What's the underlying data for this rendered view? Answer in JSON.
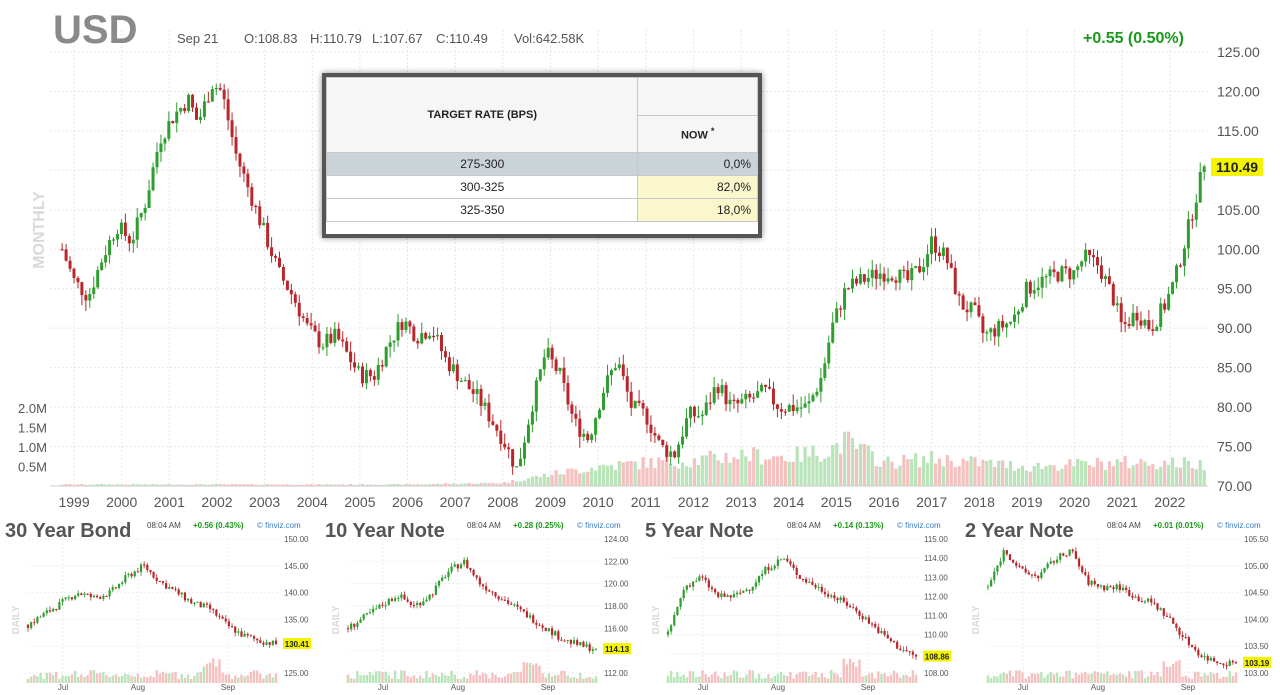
{
  "header": {
    "symbol": "USD",
    "date": "Sep 21",
    "open": "O:108.83",
    "high": "H:110.79",
    "low": "L:107.67",
    "close": "C:110.49",
    "volume": "Vol:642.58K",
    "change": "+0.55 (0.50%)",
    "period": "MONTHLY",
    "last_price": "110.49"
  },
  "colors": {
    "up": "#2e9e2e",
    "down": "#b8272c",
    "change_green": "#1a9a1a",
    "price_tag": "#f4f400",
    "vol_up": "#b9e3b9",
    "vol_down": "#f5c0c0"
  },
  "rate_table": {
    "header": "TARGET RATE (BPS)",
    "col": "NOW",
    "col_mark": "*",
    "rows": [
      {
        "range": "275-300",
        "pct": "0,0%"
      },
      {
        "range": "300-325",
        "pct": "82,0%"
      },
      {
        "range": "325-350",
        "pct": "18,0%"
      }
    ]
  },
  "chart_data": [
    {
      "type": "candlestick",
      "title": "USD",
      "subtitle": "MONTHLY",
      "x_ticks": [
        "1999",
        "2000",
        "2001",
        "2002",
        "2003",
        "2004",
        "2005",
        "2006",
        "2007",
        "2008",
        "2009",
        "2010",
        "2011",
        "2012",
        "2013",
        "2014",
        "2015",
        "2016",
        "2017",
        "2018",
        "2019",
        "2020",
        "2021",
        "2022"
      ],
      "y_ticks": [
        70,
        75,
        80,
        85,
        90,
        95,
        100,
        105,
        110,
        115,
        120,
        125
      ],
      "y_tick_labels": [
        "70.00",
        "75.00",
        "80.00",
        "85.00",
        "90.00",
        "95.00",
        "100.00",
        "105.00",
        "110.00",
        "115.00",
        "120.00",
        "125.00"
      ],
      "ylim": [
        70,
        125
      ],
      "x_range": [
        1998.6,
        2022.8
      ],
      "volume_ticks": [
        "0.5M",
        "1.0M",
        "1.5M",
        "2.0M"
      ],
      "volume_tick_values": [
        0.5,
        1.0,
        1.5,
        2.0
      ],
      "series": [
        {
          "name": "USD",
          "x": [
            1998.75,
            1999.0,
            1999.3,
            1999.6,
            1999.9,
            2000.2,
            2000.5,
            2000.8,
            2001.1,
            2001.4,
            2001.6,
            2001.9,
            2002.1,
            2002.4,
            2002.7,
            2003.0,
            2003.3,
            2003.6,
            2003.9,
            2004.2,
            2004.5,
            2004.8,
            2005.0,
            2005.3,
            2005.6,
            2005.9,
            2006.2,
            2006.5,
            2006.8,
            2007.2,
            2007.5,
            2007.8,
            2008.0,
            2008.3,
            2008.6,
            2008.9,
            2009.2,
            2009.5,
            2009.8,
            2010.1,
            2010.4,
            2010.7,
            2011.0,
            2011.3,
            2011.6,
            2011.9,
            2012.2,
            2012.5,
            2012.8,
            2013.2,
            2013.5,
            2013.8,
            2014.1,
            2014.4,
            2014.7,
            2014.9,
            2015.2,
            2015.5,
            2015.9,
            2016.2,
            2016.5,
            2016.8,
            2017.0,
            2017.3,
            2017.6,
            2017.9,
            2018.1,
            2018.4,
            2018.7,
            2019.0,
            2019.3,
            2019.7,
            2020.0,
            2020.2,
            2020.5,
            2020.8,
            2021.0,
            2021.3,
            2021.6,
            2021.9,
            2022.1,
            2022.4,
            2022.6,
            2022.72
          ],
          "close": [
            100,
            96,
            94,
            99,
            103,
            101,
            106,
            114,
            117,
            119,
            116,
            121,
            120,
            112,
            107,
            102,
            97,
            94,
            90,
            88,
            89,
            86,
            84,
            84,
            88,
            91,
            89,
            90,
            86,
            83,
            81,
            78,
            76,
            72,
            80,
            87,
            84,
            78,
            76,
            82,
            86,
            80,
            79,
            75,
            74,
            79,
            79,
            83,
            80,
            81,
            82,
            80,
            80,
            80,
            84,
            90,
            95,
            96,
            97,
            97,
            96,
            98,
            101,
            99,
            93,
            92,
            89,
            90,
            91,
            95,
            96,
            97,
            97,
            99,
            98,
            94,
            90,
            92,
            90,
            93,
            96,
            103,
            108,
            110.49
          ]
        },
        {
          "name": "Volume",
          "x": [
            1998.75,
            2000.0,
            2002.0,
            2004.0,
            2006.0,
            2008.0,
            2009.0,
            2010.0,
            2011.0,
            2012.0,
            2013.0,
            2014.0,
            2014.8,
            2015.2,
            2016.0,
            2017.0,
            2018.0,
            2019.0,
            2020.0,
            2021.0,
            2022.0,
            2022.72
          ],
          "values": [
            0.04,
            0.04,
            0.04,
            0.04,
            0.04,
            0.08,
            0.3,
            0.5,
            0.6,
            0.65,
            0.8,
            0.75,
            0.9,
            1.15,
            0.6,
            0.7,
            0.6,
            0.5,
            0.55,
            0.6,
            0.6,
            0.55
          ]
        }
      ]
    },
    {
      "type": "candlestick",
      "title": "30 Year Bond",
      "time": "08:04 AM",
      "change": "+0.56 (0.43%)",
      "source": "finviz.com",
      "period": "DAILY",
      "x_ticks": [
        "Jul",
        "Aug",
        "Sep"
      ],
      "y_tick_labels": [
        "125.00",
        "130.00",
        "135.00",
        "140.00",
        "145.00",
        "150.00"
      ],
      "ylim": [
        125,
        150
      ],
      "last_price": "130.41",
      "series": [
        {
          "name": "30 Year Bond",
          "close": [
            134,
            136,
            138,
            140,
            139,
            140,
            143,
            145,
            142,
            140,
            138,
            137,
            134,
            132,
            131,
            130.41
          ]
        }
      ]
    },
    {
      "type": "candlestick",
      "title": "10 Year Note",
      "time": "08:04 AM",
      "change": "+0.28 (0.25%)",
      "source": "finviz.com",
      "period": "DAILY",
      "x_ticks": [
        "Jul",
        "Aug",
        "Sep"
      ],
      "y_tick_labels": [
        "112.00",
        "114.00",
        "116.00",
        "118.00",
        "120.00",
        "122.00",
        "124.00"
      ],
      "ylim": [
        112,
        124
      ],
      "last_price": "114.13",
      "series": [
        {
          "name": "10 Year Note",
          "close": [
            116,
            117,
            118,
            119,
            118,
            119,
            121,
            122,
            120,
            119,
            118,
            117,
            116,
            115,
            114.5,
            114.13
          ]
        }
      ]
    },
    {
      "type": "candlestick",
      "title": "5 Year Note",
      "time": "08:04 AM",
      "change": "+0.14 (0.13%)",
      "source": "finviz.com",
      "period": "DAILY",
      "x_ticks": [
        "Jul",
        "Aug",
        "Sep"
      ],
      "y_tick_labels": [
        "108.00",
        "109.00",
        "110.00",
        "111.00",
        "112.00",
        "113.00",
        "114.00",
        "115.00"
      ],
      "ylim": [
        108,
        115
      ],
      "last_price": "108.86",
      "series": [
        {
          "name": "5 Year Note",
          "close": [
            110,
            112.5,
            113,
            112,
            112,
            112.5,
            113.5,
            114,
            113,
            112.5,
            112,
            111.5,
            110.8,
            110,
            109.3,
            108.86
          ]
        }
      ]
    },
    {
      "type": "candlestick",
      "title": "2 Year Note",
      "time": "08:04 AM",
      "change": "+0.01 (0.01%)",
      "source": "finviz.com",
      "period": "DAILY",
      "x_ticks": [
        "Jul",
        "Aug",
        "Sep"
      ],
      "y_tick_labels": [
        "103.00",
        "103.50",
        "104.00",
        "104.50",
        "105.00",
        "105.50"
      ],
      "ylim": [
        103,
        105.5
      ],
      "last_price": "103.19",
      "series": [
        {
          "name": "2 Year Note",
          "close": [
            104.6,
            105.3,
            104.9,
            104.8,
            105.1,
            105.3,
            104.7,
            104.6,
            104.6,
            104.4,
            104.3,
            104.0,
            103.6,
            103.3,
            103.2,
            103.19
          ]
        }
      ]
    }
  ]
}
